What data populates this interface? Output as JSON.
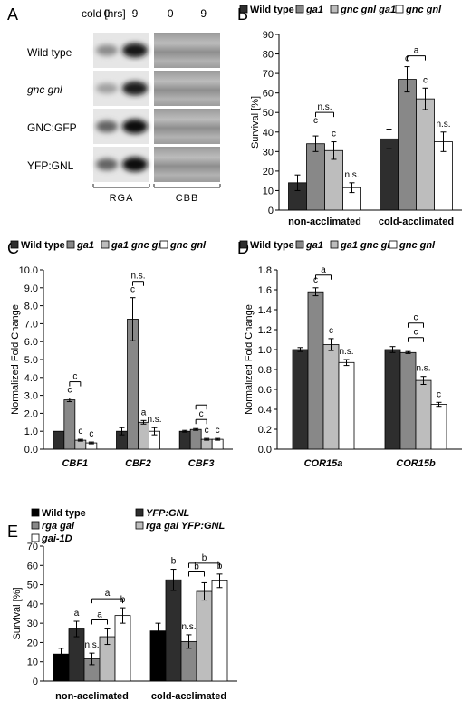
{
  "panels": {
    "A": "A",
    "B": "B",
    "C": "C",
    "D": "D",
    "E": "E"
  },
  "blot": {
    "cold_label": "cold [hrs]",
    "time_labels": [
      "0",
      "9",
      "0",
      "9"
    ],
    "rows": [
      "Wild type",
      "gnc gnl",
      "GNC:GFP",
      "YFP:GNL"
    ],
    "group_labels": [
      "RGA",
      "CBB"
    ]
  },
  "colors": {
    "wild_type": "#333333",
    "dark_gray": "#2e2e2e",
    "mid_gray": "#888888",
    "light_gray": "#bdbdbd",
    "white": "#ffffff",
    "black": "#000000"
  },
  "chart_data": [
    {
      "id": "B",
      "type": "bar",
      "categories": [
        "non-acclimated",
        "cold-acclimated"
      ],
      "series": [
        {
          "name": "Wild type",
          "values": [
            14,
            36.5
          ],
          "errors": [
            4,
            5
          ]
        },
        {
          "name": "ga1",
          "values": [
            34,
            67
          ],
          "errors": [
            4,
            6.5
          ]
        },
        {
          "name": "gnc gnl ga1",
          "values": [
            30.5,
            57
          ],
          "errors": [
            4.5,
            5.5
          ]
        },
        {
          "name": "gnc gnl",
          "values": [
            11.5,
            35
          ],
          "errors": [
            2.5,
            5
          ]
        }
      ],
      "ylabel": "Survival [%]",
      "ylim": [
        0,
        90
      ],
      "yticks": [
        "0",
        "10",
        "20",
        "30",
        "40",
        "50",
        "60",
        "70",
        "80",
        "90"
      ],
      "annotations": [
        "c",
        "c",
        "n.s.",
        "n.s.",
        "c",
        "c",
        "n.s.",
        "a",
        "n.s."
      ],
      "legend": "top"
    },
    {
      "id": "C",
      "type": "bar",
      "categories": [
        "CBF1",
        "CBF2",
        "CBF3"
      ],
      "series": [
        {
          "name": "Wild type",
          "values": [
            1.0,
            1.0,
            1.0
          ],
          "errors": [
            0,
            0.2,
            0.05
          ]
        },
        {
          "name": "ga1",
          "values": [
            2.75,
            7.25,
            1.1
          ],
          "errors": [
            0.1,
            1.2,
            0.05
          ]
        },
        {
          "name": "ga1 gnc gnl",
          "values": [
            0.5,
            1.5,
            0.55
          ],
          "errors": [
            0.05,
            0.1,
            0.05
          ]
        },
        {
          "name": "gnc gnl",
          "values": [
            0.35,
            1.0,
            0.55
          ],
          "errors": [
            0.05,
            0.2,
            0.05
          ]
        }
      ],
      "ylabel": "Normalized Fold Change",
      "ylim": [
        0,
        10
      ],
      "yticks": [
        "0.0",
        "1.0",
        "2.0",
        "3.0",
        "4.0",
        "5.0",
        "6.0",
        "7.0",
        "8.0",
        "9.0",
        "10.0"
      ],
      "annotations": [
        "c",
        "c",
        "c",
        "c",
        "c",
        "a",
        "n.s.",
        "n.s.",
        "c",
        "c",
        "c"
      ],
      "legend": "top"
    },
    {
      "id": "D",
      "type": "bar",
      "categories": [
        "COR15a",
        "COR15b"
      ],
      "series": [
        {
          "name": "Wild type",
          "values": [
            1.0,
            1.0
          ],
          "errors": [
            0.02,
            0.03
          ]
        },
        {
          "name": "ga1",
          "values": [
            1.58,
            0.97
          ],
          "errors": [
            0.04,
            0.01
          ]
        },
        {
          "name": "ga1 gnc gnl",
          "values": [
            1.05,
            0.69
          ],
          "errors": [
            0.06,
            0.04
          ]
        },
        {
          "name": "gnc gnl",
          "values": [
            0.87,
            0.45
          ],
          "errors": [
            0.03,
            0.02
          ]
        }
      ],
      "ylabel": "Normalized Fold Change",
      "ylim": [
        0,
        1.8
      ],
      "yticks": [
        "0.0",
        "0.2",
        "0.4",
        "0.6",
        "0.8",
        "1.0",
        "1.2",
        "1.4",
        "1.6",
        "1.8"
      ],
      "annotations": [
        "c",
        "c",
        "n.s.",
        "a",
        "n.s.",
        "c",
        "c",
        "c"
      ],
      "legend": "top"
    },
    {
      "id": "E",
      "type": "bar",
      "categories": [
        "non-acclimated",
        "cold-acclimated"
      ],
      "series": [
        {
          "name": "Wild type",
          "values": [
            14,
            26
          ],
          "errors": [
            3,
            4
          ]
        },
        {
          "name": "YFP:GNL",
          "values": [
            27,
            52.5
          ],
          "errors": [
            4,
            5.5
          ]
        },
        {
          "name": "rga gai",
          "values": [
            11.5,
            20.5
          ],
          "errors": [
            3,
            3.5
          ]
        },
        {
          "name": "rga gai YFP:GNL",
          "values": [
            23,
            46.5
          ],
          "errors": [
            4,
            4.5
          ]
        },
        {
          "name": "gai-1D",
          "values": [
            34,
            52
          ],
          "errors": [
            4,
            3.5
          ]
        }
      ],
      "ylabel": "Survival [%]",
      "ylim": [
        0,
        70
      ],
      "yticks": [
        "0",
        "10",
        "20",
        "30",
        "40",
        "50",
        "60",
        "70"
      ],
      "annotations": [
        "a",
        "n.s.",
        "a",
        "a",
        "b",
        "b",
        "n.s.",
        "b",
        "b",
        "b"
      ],
      "legend": "top"
    }
  ]
}
